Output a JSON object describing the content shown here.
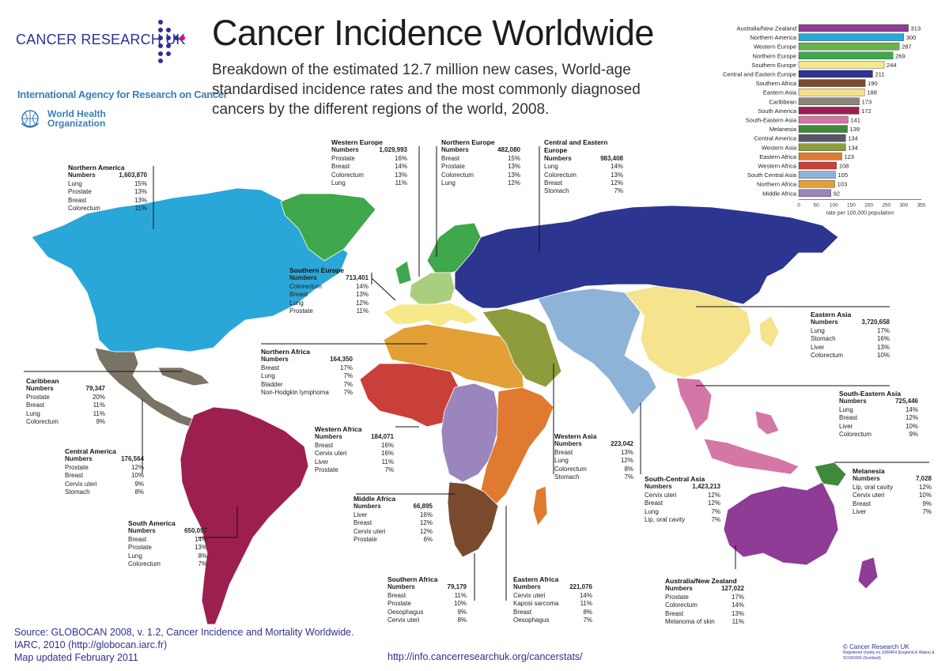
{
  "header": {
    "org_name": "CANCER RESEARCH UK",
    "iarc": "International Agency for Research on Cancer",
    "who_line1": "World Health",
    "who_line2": "Organization",
    "title": "Cancer Incidence Worldwide",
    "subtitle": "Breakdown of the estimated 12.7 million new cases, World-age standardised incidence rates and the most commonly diagnosed cancers by the different regions of the world, 2008."
  },
  "chart_data": {
    "type": "bar",
    "orientation": "horizontal",
    "categories": [
      "Australia/New Zealand",
      "Northern America",
      "Western Europe",
      "Northern Europe",
      "Southern Europe",
      "Central and Eastern Europe",
      "Southern Africa",
      "Eastern Asia",
      "Caribbean",
      "South America",
      "South-Eastern Asia",
      "Melanesia",
      "Central America",
      "Western Asia",
      "Eastern Africa",
      "Western Africa",
      "South Central Asia",
      "Northern Africa",
      "Middle Africa"
    ],
    "values": [
      313,
      300,
      287,
      269,
      244,
      211,
      190,
      188,
      173,
      172,
      141,
      139,
      134,
      134,
      123,
      108,
      105,
      103,
      92
    ],
    "colors": [
      "#8e3c96",
      "#2aa7d9",
      "#6ab04c",
      "#3fa84c",
      "#f5e98a",
      "#2c3590",
      "#7a4a2e",
      "#f5df8a",
      "#8b8579",
      "#9d1f4f",
      "#d476a6",
      "#3f8a3a",
      "#58576a",
      "#8f9c3c",
      "#e07a30",
      "#c9403a",
      "#8eb3d8",
      "#e3a037",
      "#9a85bd"
    ],
    "xticks": [
      "0",
      "50",
      "100",
      "150",
      "200",
      "250",
      "300",
      "350"
    ],
    "xlim": [
      0,
      350
    ],
    "xlabel": "rate per 100,000 population"
  },
  "regions": {
    "northern_america": {
      "name": "Northern America",
      "numbers_label": "Numbers",
      "numbers": "1,603,870",
      "rows": [
        [
          "Lung",
          "15%"
        ],
        [
          "Prostate",
          "13%"
        ],
        [
          "Breast",
          "13%"
        ],
        [
          "Colorectum",
          "11%"
        ]
      ]
    },
    "western_europe": {
      "name": "Western Europe",
      "numbers_label": "Numbers",
      "numbers": "1,029,993",
      "rows": [
        [
          "Prostate",
          "16%"
        ],
        [
          "Breast",
          "14%"
        ],
        [
          "Colorectum",
          "13%"
        ],
        [
          "Lung",
          "11%"
        ]
      ]
    },
    "northern_europe": {
      "name": "Northern Europe",
      "numbers_label": "Numbers",
      "numbers": "482,080",
      "rows": [
        [
          "Breast",
          "15%"
        ],
        [
          "Prostate",
          "13%"
        ],
        [
          "Colorectum",
          "13%"
        ],
        [
          "Lung",
          "12%"
        ]
      ]
    },
    "central_eastern_europe": {
      "name": "Central and Eastern Europe",
      "numbers_label": "Numbers",
      "numbers": "983,408",
      "rows": [
        [
          "Lung",
          "14%"
        ],
        [
          "Colorectum",
          "13%"
        ],
        [
          "Breast",
          "12%"
        ],
        [
          "Stomach",
          "7%"
        ]
      ]
    },
    "southern_europe": {
      "name": "Southern Europe",
      "numbers_label": "Numbers",
      "numbers": "713,401",
      "rows": [
        [
          "Colorectum",
          "14%"
        ],
        [
          "Breast",
          "13%"
        ],
        [
          "Lung",
          "12%"
        ],
        [
          "Prostate",
          "11%"
        ]
      ]
    },
    "northern_africa": {
      "name": "Northern Africa",
      "numbers_label": "Numbers",
      "numbers": "164,350",
      "rows": [
        [
          "Breast",
          "17%"
        ],
        [
          "Lung",
          "7%"
        ],
        [
          "Bladder",
          "7%"
        ],
        [
          "Non-Hodgkin lymphoma",
          "7%"
        ]
      ]
    },
    "caribbean": {
      "name": "Caribbean",
      "numbers_label": "Numbers",
      "numbers": "79,347",
      "rows": [
        [
          "Prostate",
          "20%"
        ],
        [
          "Breast",
          "11%"
        ],
        [
          "Lung",
          "11%"
        ],
        [
          "Colorectum",
          "9%"
        ]
      ]
    },
    "central_america": {
      "name": "Central America",
      "numbers_label": "Numbers",
      "numbers": "176,564",
      "rows": [
        [
          "Prostate",
          "12%"
        ],
        [
          "Breast",
          "10%"
        ],
        [
          "Cervix uteri",
          "9%"
        ],
        [
          "Stomach",
          "8%"
        ]
      ]
    },
    "south_america": {
      "name": "South America",
      "numbers_label": "Numbers",
      "numbers": "650,097",
      "rows": [
        [
          "Breast",
          "14%"
        ],
        [
          "Prostate",
          "13%"
        ],
        [
          "Lung",
          "8%"
        ],
        [
          "Colorectum",
          "7%"
        ]
      ]
    },
    "western_africa": {
      "name": "Western Africa",
      "numbers_label": "Numbers",
      "numbers": "184,071",
      "rows": [
        [
          "Breast",
          "16%"
        ],
        [
          "Cervix uteri",
          "16%"
        ],
        [
          "Liver",
          "11%"
        ],
        [
          "Prostate",
          "7%"
        ]
      ]
    },
    "middle_africa": {
      "name": "Middle Africa",
      "numbers_label": "Numbers",
      "numbers": "66,895",
      "rows": [
        [
          "Liver",
          "16%"
        ],
        [
          "Breast",
          "12%"
        ],
        [
          "Cervix uteri",
          "12%"
        ],
        [
          "Prostate",
          "6%"
        ]
      ]
    },
    "southern_africa": {
      "name": "Southern Africa",
      "numbers_label": "Numbers",
      "numbers": "79,179",
      "rows": [
        [
          "Breast",
          "11%"
        ],
        [
          "Prostate",
          "10%"
        ],
        [
          "Oesophagus",
          "9%"
        ],
        [
          "Cervix uteri",
          "8%"
        ]
      ]
    },
    "eastern_africa": {
      "name": "Eastern Africa",
      "numbers_label": "Numbers",
      "numbers": "221,076",
      "rows": [
        [
          "Cervix uteri",
          "14%"
        ],
        [
          "Kaposi sarcoma",
          "11%"
        ],
        [
          "Breast",
          "8%"
        ],
        [
          "Oesophagus",
          "7%"
        ]
      ]
    },
    "western_asia": {
      "name": "Western Asia",
      "numbers_label": "Numbers",
      "numbers": "223,042",
      "rows": [
        [
          "Breast",
          "13%"
        ],
        [
          "Lung",
          "12%"
        ],
        [
          "Colorectum",
          "8%"
        ],
        [
          "Stomach",
          "7%"
        ]
      ]
    },
    "south_central_asia": {
      "name": "South-Central Asia",
      "numbers_label": "Numbers",
      "numbers": "1,423,213",
      "rows": [
        [
          "Cervix uteri",
          "12%"
        ],
        [
          "Breast",
          "12%"
        ],
        [
          "Lung",
          "7%"
        ],
        [
          "Lip, oral cavity",
          "7%"
        ]
      ]
    },
    "eastern_asia": {
      "name": "Eastern Asia",
      "numbers_label": "Numbers",
      "numbers": "3,720,658",
      "rows": [
        [
          "Lung",
          "17%"
        ],
        [
          "Stomach",
          "16%"
        ],
        [
          "Liver",
          "13%"
        ],
        [
          "Colorectum",
          "10%"
        ]
      ]
    },
    "south_eastern_asia": {
      "name": "South-Eastern Asia",
      "numbers_label": "Numbers",
      "numbers": "725,446",
      "rows": [
        [
          "Lung",
          "14%"
        ],
        [
          "Breast",
          "12%"
        ],
        [
          "Liver",
          "10%"
        ],
        [
          "Colorectum",
          "9%"
        ]
      ]
    },
    "melanesia": {
      "name": "Melanesia",
      "numbers_label": "Numbers",
      "numbers": "7,028",
      "rows": [
        [
          "Lip, oral cavity",
          "12%"
        ],
        [
          "Cervix uteri",
          "10%"
        ],
        [
          "Breast",
          "9%"
        ],
        [
          "Liver",
          "7%"
        ]
      ]
    },
    "australia_nz": {
      "name": "Australia/New Zealand",
      "numbers_label": "Numbers",
      "numbers": "127,022",
      "rows": [
        [
          "Prostate",
          "17%"
        ],
        [
          "Colorectum",
          "14%"
        ],
        [
          "Breast",
          "13%"
        ],
        [
          "Melanoma of skin",
          "11%"
        ]
      ]
    }
  },
  "colors": {
    "northern_america": "#2aa7d9",
    "central_america": "#7a7466",
    "caribbean": "#7a7466",
    "south_america": "#9d1f4f",
    "greenland": "#3fa84c",
    "northern_europe": "#3fa84c",
    "western_europe": "#a9cf7e",
    "southern_europe": "#f5e98a",
    "central_eastern_europe": "#2c3590",
    "northern_africa": "#e3a037",
    "western_africa": "#c9403a",
    "middle_africa": "#9a85bd",
    "eastern_africa": "#e07a30",
    "southern_africa": "#7a4a2e",
    "western_asia": "#8f9c3c",
    "south_central_asia": "#8eb3d8",
    "eastern_asia": "#f5e38e",
    "south_eastern_asia": "#d476a6",
    "melanesia": "#3f8a3a",
    "australia": "#8e3c96"
  },
  "footer": {
    "source1": "Source: GLOBOCAN 2008, v. 1.2, Cancer Incidence and Mortality Worldwide.",
    "source2": "IARC, 2010 (http://globocan.iarc.fr)",
    "source3": "Map updated February 2011",
    "url": "http://info.cancerresearchuk.org/cancerstats/",
    "copyright": "© Cancer Research UK",
    "charity": "Registered charity no.1089464 (England & Wales) & SC041666 (Scotland)"
  }
}
